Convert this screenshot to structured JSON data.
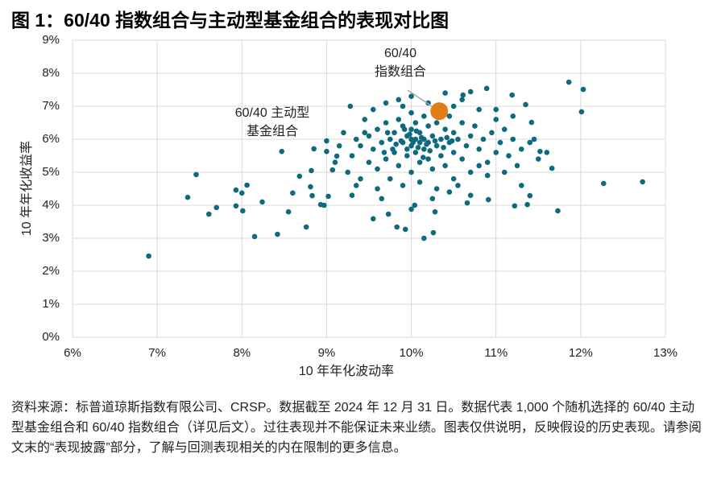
{
  "chart_data": {
    "type": "scatter",
    "title": "图 1：60/40 指数组合与主动型基金组合的表现对比图",
    "xlabel": "10 年年化波动率",
    "ylabel": "10 年年化收益率",
    "xlim": [
      6,
      13
    ],
    "ylim": [
      0,
      9
    ],
    "xticks": [
      {
        "value": 6,
        "label": "6%"
      },
      {
        "value": 7,
        "label": "7%"
      },
      {
        "value": 8,
        "label": "8%"
      },
      {
        "value": 9,
        "label": "9%"
      },
      {
        "value": 10,
        "label": "10%"
      },
      {
        "value": 11,
        "label": "11%"
      },
      {
        "value": 12,
        "label": "12%"
      },
      {
        "value": 13,
        "label": "13%"
      }
    ],
    "yticks": [
      {
        "value": 0,
        "label": "0%"
      },
      {
        "value": 1,
        "label": "1%"
      },
      {
        "value": 2,
        "label": "2%"
      },
      {
        "value": 3,
        "label": "3%"
      },
      {
        "value": 4,
        "label": "4%"
      },
      {
        "value": 5,
        "label": "5%"
      },
      {
        "value": 6,
        "label": "6%"
      },
      {
        "value": 7,
        "label": "7%"
      },
      {
        "value": 8,
        "label": "8%"
      },
      {
        "value": 9,
        "label": "9%"
      }
    ],
    "grid": true,
    "series": [
      {
        "color": "#0e6b7e",
        "x": [
          6.9,
          7.46,
          7.36,
          7.61,
          7.7,
          7.93,
          7.93,
          8.0,
          8.06,
          8.01,
          8.15,
          8.24,
          8.42,
          8.47,
          8.55,
          8.6,
          8.68,
          8.76,
          8.81,
          8.85,
          8.93,
          8.97,
          9.02,
          8.83,
          8.82,
          9.0,
          9.0,
          9.12,
          9.07,
          9.28,
          9.55,
          9.73,
          9.83,
          9.93,
          10.0,
          10.04,
          10.15,
          10.26,
          10.28,
          10.66,
          10.91,
          11.22,
          11.37,
          11.4,
          11.73,
          11.66,
          11.86,
          12.03,
          12.01,
          12.27,
          12.73,
          11.52,
          11.35,
          10.89,
          11.19,
          10.7,
          10.61,
          11.42,
          11.0,
          9.3,
          9.35,
          9.4,
          9.45,
          9.5,
          9.5,
          9.55,
          9.6,
          9.6,
          9.65,
          9.7,
          9.7,
          9.75,
          9.75,
          9.8,
          9.8,
          9.85,
          9.85,
          9.9,
          9.9,
          9.9,
          9.95,
          9.95,
          10.0,
          10.0,
          10.0,
          10.0,
          10.05,
          10.05,
          10.05,
          10.1,
          10.1,
          10.1,
          10.1,
          10.15,
          10.15,
          10.15,
          10.2,
          10.2,
          10.2,
          10.25,
          10.25,
          10.3,
          10.3,
          10.3,
          10.35,
          10.35,
          10.4,
          10.4,
          10.45,
          10.45,
          10.5,
          10.5,
          10.5,
          10.55,
          10.6,
          10.6,
          10.65,
          10.7,
          10.7,
          10.75,
          10.8,
          10.85,
          10.9,
          10.95,
          11.0,
          11.05,
          11.1,
          11.15,
          11.2,
          11.3,
          11.4,
          11.5,
          11.6,
          9.95,
          10.0,
          10.02,
          10.08,
          10.12,
          9.98,
          10.18,
          9.88,
          10.22,
          10.28,
          9.82,
          10.06,
          10.14,
          9.92,
          10.38,
          9.78,
          10.42,
          9.72,
          10.48,
          9.68,
          9.2,
          9.25,
          9.3,
          9.4,
          9.45,
          9.55,
          9.6,
          9.7,
          9.85,
          9.9,
          10.0,
          10.2,
          10.4,
          10.5,
          10.55,
          10.6,
          10.7,
          10.8,
          10.9,
          11.0,
          11.1,
          11.2,
          11.3,
          11.45,
          9.15,
          9.1,
          9.35,
          9.65,
          10.25,
          10.45,
          10.8,
          11.25
        ],
        "values": [
          2.46,
          4.93,
          4.24,
          3.73,
          3.93,
          4.46,
          3.98,
          4.37,
          4.61,
          3.83,
          3.05,
          4.1,
          3.12,
          5.63,
          3.8,
          4.37,
          4.88,
          3.34,
          4.56,
          5.71,
          4.02,
          4.0,
          4.27,
          4.29,
          5.05,
          5.63,
          5.95,
          5.49,
          5.07,
          7.0,
          3.59,
          3.73,
          3.34,
          3.27,
          3.88,
          4.0,
          3.0,
          3.17,
          3.8,
          4.07,
          4.17,
          3.98,
          4.02,
          4.29,
          3.83,
          5.12,
          7.73,
          7.51,
          6.83,
          4.66,
          4.71,
          5.63,
          7.05,
          7.54,
          7.34,
          7.44,
          7.34,
          6.51,
          6.9,
          5.5,
          6.0,
          5.8,
          6.2,
          5.3,
          6.1,
          5.7,
          6.3,
          5.1,
          5.9,
          6.5,
          5.4,
          6.0,
          4.8,
          6.2,
          5.6,
          6.6,
          5.2,
          5.9,
          6.4,
          4.6,
          5.5,
          6.1,
          6.8,
          5.8,
          5.0,
          6.3,
          5.6,
          6.0,
          6.5,
          5.3,
          5.9,
          6.2,
          4.7,
          6.7,
          5.7,
          6.0,
          5.4,
          6.4,
          5.9,
          6.1,
          5.1,
          5.8,
          6.5,
          4.5,
          6.0,
          5.5,
          6.3,
          5.2,
          5.9,
          6.7,
          5.6,
          6.2,
          4.8,
          6.0,
          5.4,
          6.5,
          5.8,
          6.1,
          5.0,
          6.4,
          5.7,
          6.0,
          5.3,
          6.2,
          5.6,
          5.9,
          6.3,
          5.5,
          6.0,
          5.7,
          5.9,
          5.4,
          5.6,
          5.7,
          6.0,
          5.9,
          5.75,
          6.05,
          6.15,
          5.85,
          5.95,
          5.65,
          5.95,
          5.85,
          6.25,
          5.45,
          6.3,
          5.75,
          5.7,
          6.05,
          6.2,
          5.95,
          5.6,
          6.2,
          5.0,
          4.3,
          4.8,
          6.6,
          6.9,
          4.5,
          7.1,
          7.2,
          7.0,
          7.3,
          7.1,
          7.4,
          7.0,
          4.6,
          7.2,
          4.3,
          6.9,
          4.9,
          6.6,
          5.0,
          6.7,
          4.6,
          6.0,
          5.8,
          5.3,
          4.6,
          4.2,
          4.2,
          4.4,
          5.2,
          5.2
        ]
      },
      {
        "color": "#e07d14",
        "emphasis": true,
        "x": [
          10.33
        ],
        "values": [
          6.85
        ]
      }
    ],
    "annotations": [
      {
        "lines": [
          "60/40",
          "指数组合"
        ]
      },
      {
        "lines": [
          "60/40 主动型",
          "基金组合"
        ]
      }
    ],
    "note": "资料来源：标普道琼斯指数有限公司、CRSP。数据截至 2024 年 12 月 31 日。数据代表 1,000 个随机选择的 60/40 主动型基金组合和 60/40 指数组合（详见后文）。过往表现并不能保证未来业绩。图表仅供说明，反映假设的历史表现。请参阅文末的“表现披露”部分，了解与回测表现相关的内在限制的更多信息。"
  }
}
